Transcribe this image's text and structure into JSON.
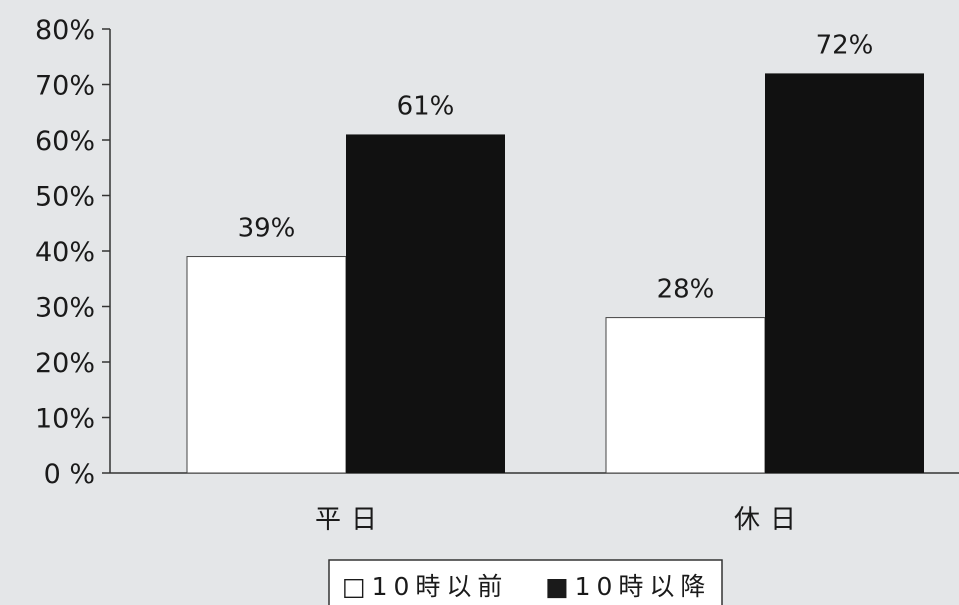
{
  "chart_data": {
    "type": "bar",
    "title": "",
    "xlabel": "",
    "ylabel": "",
    "categories": [
      "平日",
      "休日"
    ],
    "series": [
      {
        "name": "10時以前",
        "values": [
          39,
          28
        ],
        "color": "#ffffff",
        "marker": "□"
      },
      {
        "name": "10時以降",
        "values": [
          61,
          72
        ],
        "color": "#111111",
        "marker": "■"
      }
    ],
    "data_labels": [
      [
        "39%",
        "28%"
      ],
      [
        "61%",
        "72%"
      ]
    ],
    "yticks": [
      "0 %",
      "10%",
      "20%",
      "30%",
      "40%",
      "50%",
      "60%",
      "70%",
      "80%"
    ],
    "ylim": [
      0,
      80
    ],
    "grid": false,
    "legend_position": "bottom-center"
  }
}
